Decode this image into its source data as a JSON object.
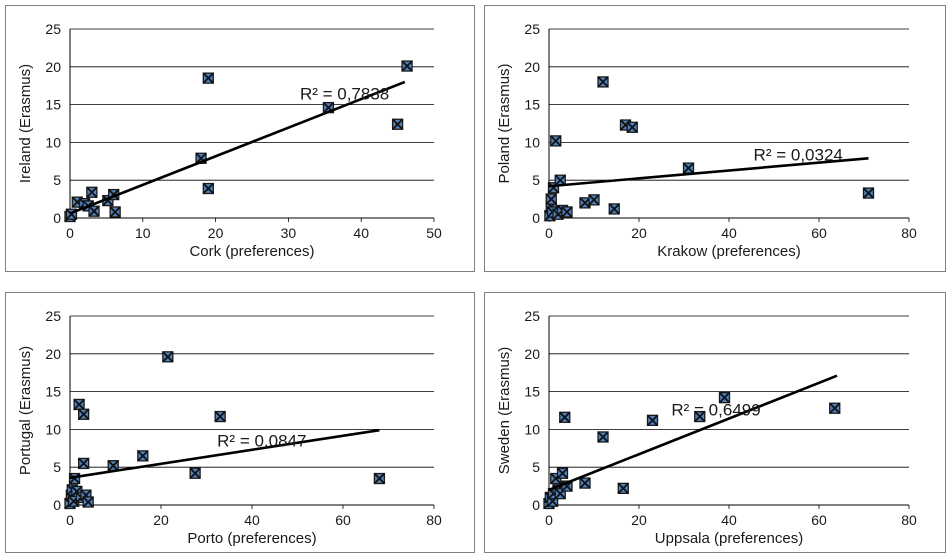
{
  "chart_data": [
    {
      "type": "scatter",
      "xlabel": "Cork (preferences)",
      "ylabel": "Ireland (Erasmus)",
      "xlim": [
        0,
        50
      ],
      "ylim": [
        0,
        25
      ],
      "xticks": [
        0,
        10,
        20,
        30,
        40,
        50
      ],
      "yticks": [
        0,
        5,
        10,
        15,
        20,
        25
      ],
      "grid": "horizontal",
      "marker": "boxed-x",
      "marker_color": "#4f81bd",
      "points": [
        [
          0,
          0.2
        ],
        [
          0.2,
          0.5
        ],
        [
          1,
          2.1
        ],
        [
          2,
          1.9
        ],
        [
          2.5,
          1.6
        ],
        [
          3,
          3.4
        ],
        [
          3.3,
          0.9
        ],
        [
          5.2,
          2.3
        ],
        [
          6,
          3.1
        ],
        [
          6.2,
          0.8
        ],
        [
          18,
          7.9
        ],
        [
          19,
          3.9
        ],
        [
          19,
          18.5
        ],
        [
          35.5,
          14.6
        ],
        [
          45,
          12.4
        ],
        [
          46.3,
          20.1
        ]
      ],
      "trendline": {
        "type": "linear",
        "from": [
          0,
          0.6
        ],
        "to": [
          46,
          18
        ],
        "r2_label": "R² = 0,7838"
      }
    },
    {
      "type": "scatter",
      "xlabel": "Krakow (preferences)",
      "ylabel": "Poland (Erasmus)",
      "xlim": [
        0,
        80
      ],
      "ylim": [
        0,
        25
      ],
      "xticks": [
        0,
        20,
        40,
        60,
        80
      ],
      "yticks": [
        0,
        5,
        10,
        15,
        20,
        25
      ],
      "grid": "horizontal",
      "marker": "boxed-x",
      "marker_color": "#4f81bd",
      "points": [
        [
          0.2,
          0.3
        ],
        [
          0.5,
          1.5
        ],
        [
          0.8,
          0.8
        ],
        [
          0.5,
          2.5
        ],
        [
          1,
          4
        ],
        [
          1.5,
          10.2
        ],
        [
          2,
          0.5
        ],
        [
          2.5,
          5
        ],
        [
          3,
          1
        ],
        [
          4,
          0.8
        ],
        [
          8,
          2
        ],
        [
          10,
          2.4
        ],
        [
          12,
          18
        ],
        [
          14.5,
          1.2
        ],
        [
          17,
          12.3
        ],
        [
          18.5,
          12
        ],
        [
          31,
          6.6
        ],
        [
          71,
          3.3
        ]
      ],
      "trendline": {
        "type": "linear",
        "from": [
          0,
          4.2
        ],
        "to": [
          71,
          7.9
        ],
        "r2_label": "R² = 0,0324"
      }
    },
    {
      "type": "scatter",
      "xlabel": "Porto (preferences)",
      "ylabel": "Portugal (Erasmus)",
      "xlim": [
        0,
        80
      ],
      "ylim": [
        0,
        25
      ],
      "xticks": [
        0,
        20,
        40,
        60,
        80
      ],
      "yticks": [
        0,
        5,
        10,
        15,
        20,
        25
      ],
      "grid": "horizontal",
      "marker": "boxed-x",
      "marker_color": "#4f81bd",
      "points": [
        [
          0,
          0.2
        ],
        [
          0.3,
          1.3
        ],
        [
          0.5,
          2
        ],
        [
          0.8,
          0.5
        ],
        [
          1,
          3.5
        ],
        [
          1.5,
          1.8
        ],
        [
          2,
          13.3
        ],
        [
          2.5,
          1
        ],
        [
          3,
          12
        ],
        [
          3,
          5.5
        ],
        [
          3.5,
          1.3
        ],
        [
          4,
          0.4
        ],
        [
          9.5,
          5.2
        ],
        [
          16,
          6.5
        ],
        [
          21.5,
          19.6
        ],
        [
          27.5,
          4.2
        ],
        [
          33,
          11.7
        ],
        [
          68,
          3.5
        ]
      ],
      "trendline": {
        "type": "linear",
        "from": [
          0,
          3.6
        ],
        "to": [
          68,
          9.9
        ],
        "r2_label": "R² = 0,0847"
      }
    },
    {
      "type": "scatter",
      "xlabel": "Uppsala (preferences)",
      "ylabel": "Sweden (Erasmus)",
      "xlim": [
        0,
        80
      ],
      "ylim": [
        0,
        25
      ],
      "xticks": [
        0,
        20,
        40,
        60,
        80
      ],
      "yticks": [
        0,
        5,
        10,
        15,
        20,
        25
      ],
      "grid": "horizontal",
      "marker": "boxed-x",
      "marker_color": "#4f81bd",
      "points": [
        [
          0,
          0.2
        ],
        [
          0.3,
          1
        ],
        [
          0.8,
          0.5
        ],
        [
          1,
          1.5
        ],
        [
          1.5,
          3.5
        ],
        [
          2,
          2
        ],
        [
          2.5,
          1.5
        ],
        [
          3,
          4.2
        ],
        [
          3.5,
          11.6
        ],
        [
          4,
          2.5
        ],
        [
          8,
          2.9
        ],
        [
          12,
          9
        ],
        [
          16.5,
          2.2
        ],
        [
          23,
          11.2
        ],
        [
          33.5,
          11.7
        ],
        [
          39,
          14.2
        ],
        [
          63.5,
          12.8
        ]
      ],
      "trendline": {
        "type": "linear",
        "from": [
          0,
          2
        ],
        "to": [
          64,
          17.1
        ],
        "r2_label": "R² = 0,6499"
      }
    }
  ]
}
